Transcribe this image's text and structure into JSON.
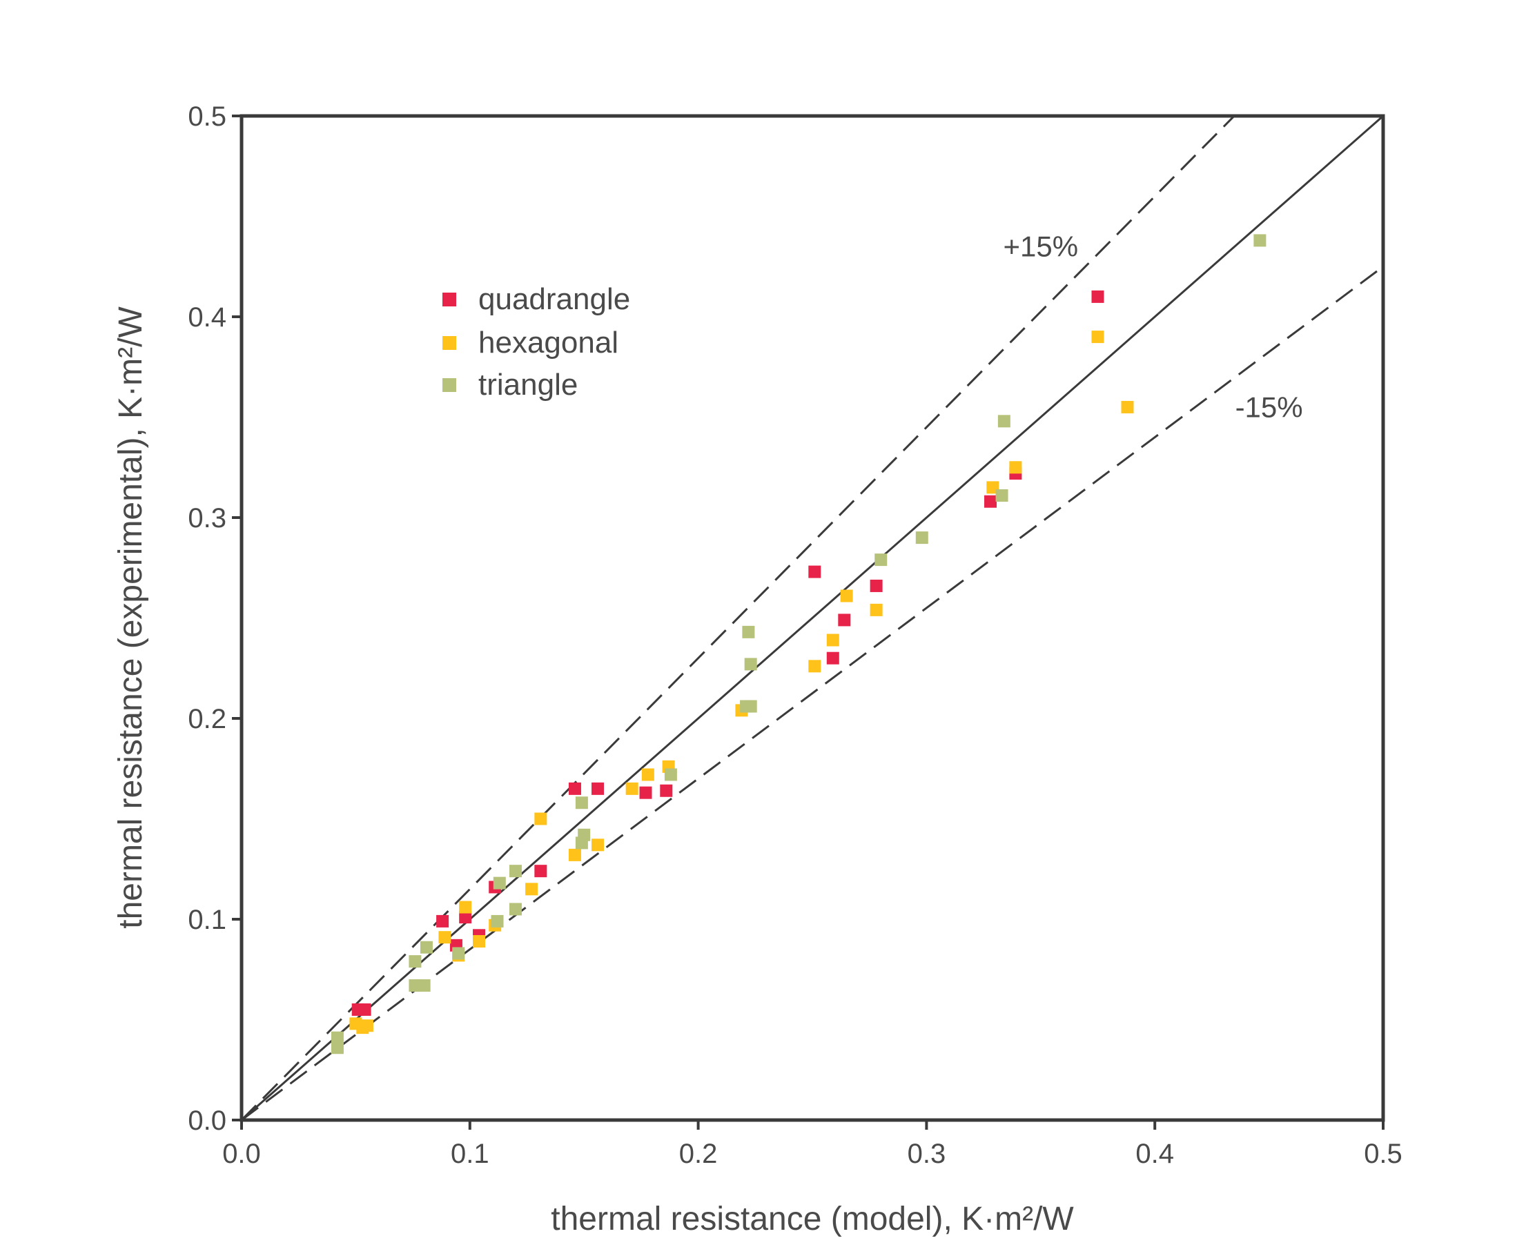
{
  "chart_data": {
    "type": "scatter",
    "title": "",
    "xlabel": "thermal resistance (model), K·m²/W",
    "ylabel": "thermal resistance (experimental), K·m²/W",
    "xlim": [
      0.0,
      0.5
    ],
    "ylim": [
      0.0,
      0.5
    ],
    "xticks": [
      "0.0",
      "0.1",
      "0.2",
      "0.3",
      "0.4",
      "0.5"
    ],
    "yticks": [
      "0.0",
      "0.1",
      "0.2",
      "0.3",
      "0.4",
      "0.5"
    ],
    "grid": false,
    "legend_position": "top-left",
    "reference_lines": [
      {
        "name": "y = x",
        "slope": 1.0,
        "style": "solid",
        "label": ""
      },
      {
        "name": "plus 15 percent",
        "slope": 1.15,
        "style": "dashed",
        "label": "+15%",
        "label_at": [
          0.35,
          0.43
        ]
      },
      {
        "name": "minus 15 percent",
        "slope": 0.85,
        "style": "dashed",
        "label": "-15%",
        "label_at": [
          0.45,
          0.35
        ]
      }
    ],
    "series": [
      {
        "name": "quadrangle",
        "color": "#e8234a",
        "points": [
          [
            0.051,
            0.055
          ],
          [
            0.054,
            0.055
          ],
          [
            0.088,
            0.099
          ],
          [
            0.094,
            0.087
          ],
          [
            0.098,
            0.101
          ],
          [
            0.104,
            0.092
          ],
          [
            0.111,
            0.116
          ],
          [
            0.131,
            0.124
          ],
          [
            0.146,
            0.165
          ],
          [
            0.156,
            0.165
          ],
          [
            0.177,
            0.163
          ],
          [
            0.186,
            0.164
          ],
          [
            0.251,
            0.273
          ],
          [
            0.259,
            0.23
          ],
          [
            0.264,
            0.249
          ],
          [
            0.278,
            0.266
          ],
          [
            0.328,
            0.308
          ],
          [
            0.339,
            0.322
          ],
          [
            0.375,
            0.41
          ]
        ]
      },
      {
        "name": "hexagonal",
        "color": "#ffc21a",
        "points": [
          [
            0.05,
            0.048
          ],
          [
            0.053,
            0.046
          ],
          [
            0.055,
            0.047
          ],
          [
            0.089,
            0.091
          ],
          [
            0.095,
            0.082
          ],
          [
            0.098,
            0.106
          ],
          [
            0.104,
            0.089
          ],
          [
            0.111,
            0.097
          ],
          [
            0.127,
            0.115
          ],
          [
            0.131,
            0.15
          ],
          [
            0.146,
            0.132
          ],
          [
            0.156,
            0.137
          ],
          [
            0.171,
            0.165
          ],
          [
            0.178,
            0.172
          ],
          [
            0.187,
            0.176
          ],
          [
            0.219,
            0.204
          ],
          [
            0.251,
            0.226
          ],
          [
            0.259,
            0.239
          ],
          [
            0.265,
            0.261
          ],
          [
            0.278,
            0.254
          ],
          [
            0.329,
            0.315
          ],
          [
            0.339,
            0.325
          ],
          [
            0.375,
            0.39
          ],
          [
            0.388,
            0.355
          ]
        ]
      },
      {
        "name": "triangle",
        "color": "#b6c27a",
        "points": [
          [
            0.042,
            0.036
          ],
          [
            0.042,
            0.041
          ],
          [
            0.076,
            0.079
          ],
          [
            0.076,
            0.067
          ],
          [
            0.08,
            0.067
          ],
          [
            0.081,
            0.086
          ],
          [
            0.095,
            0.083
          ],
          [
            0.112,
            0.099
          ],
          [
            0.113,
            0.118
          ],
          [
            0.12,
            0.124
          ],
          [
            0.12,
            0.105
          ],
          [
            0.149,
            0.158
          ],
          [
            0.149,
            0.138
          ],
          [
            0.15,
            0.142
          ],
          [
            0.188,
            0.172
          ],
          [
            0.221,
            0.206
          ],
          [
            0.222,
            0.243
          ],
          [
            0.223,
            0.227
          ],
          [
            0.223,
            0.206
          ],
          [
            0.28,
            0.279
          ],
          [
            0.298,
            0.29
          ],
          [
            0.333,
            0.311
          ],
          [
            0.334,
            0.348
          ],
          [
            0.446,
            0.438
          ]
        ]
      }
    ]
  }
}
